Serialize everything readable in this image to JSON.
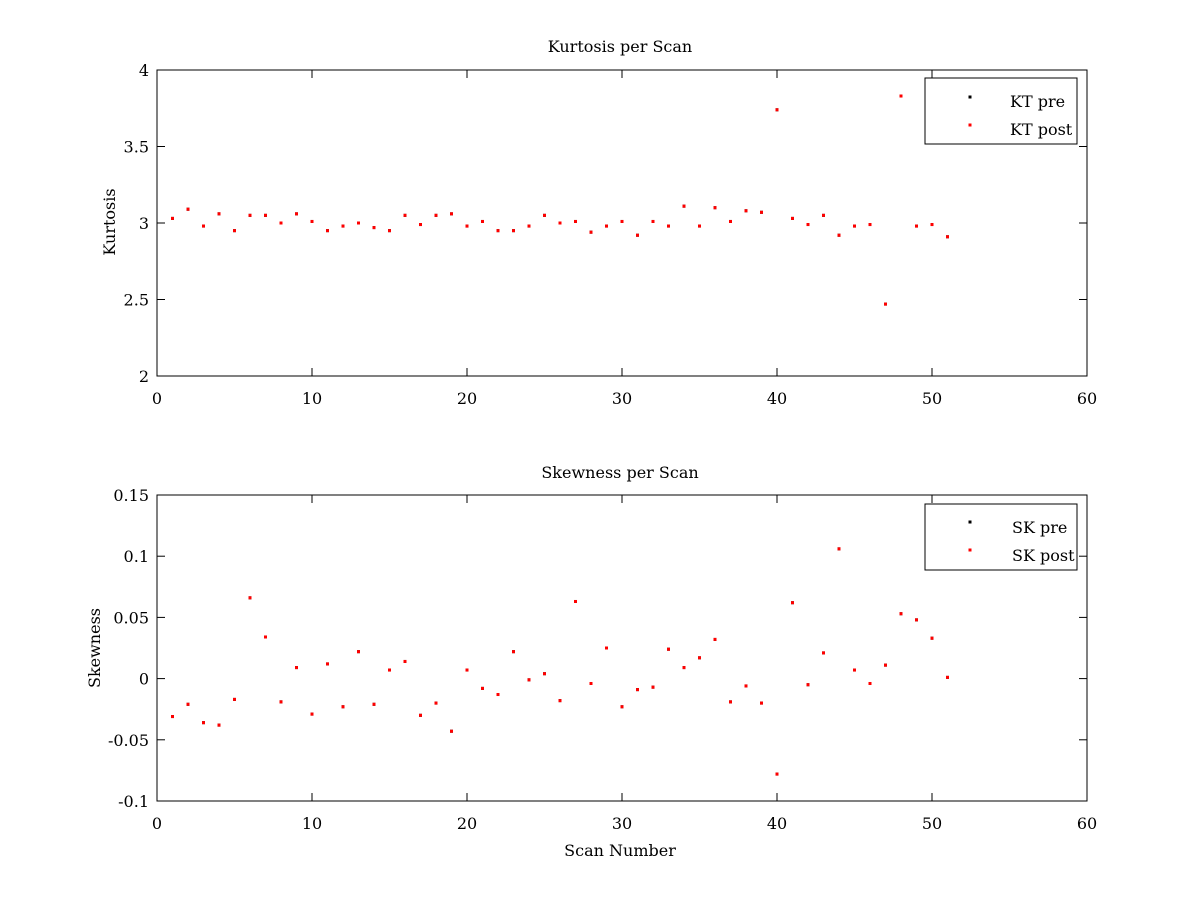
{
  "chart_data": [
    {
      "type": "scatter",
      "title": "Kurtosis per Scan",
      "xlabel": "",
      "ylabel": "Kurtosis",
      "xlim": [
        0,
        60
      ],
      "ylim": [
        2,
        4
      ],
      "xticks": [
        "0",
        "10",
        "20",
        "30",
        "40",
        "50",
        "60"
      ],
      "yticks": [
        "2",
        "2.5",
        "3",
        "3.5",
        "4"
      ],
      "grid": false,
      "legend_position": "top-right",
      "series": [
        {
          "name": "KT pre",
          "color": "#000000",
          "x": [
            1,
            2,
            3,
            4,
            5,
            6,
            7,
            8,
            9,
            10,
            11,
            12,
            13,
            14,
            15,
            16,
            17,
            18,
            19,
            20,
            21,
            22,
            23,
            24,
            25,
            26,
            27,
            28,
            29,
            30,
            31,
            32,
            33,
            34,
            35,
            36,
            37,
            38,
            39,
            40,
            41,
            42,
            43,
            44,
            45,
            46,
            47,
            48,
            49,
            50,
            51
          ],
          "y": [
            3.03,
            3.09,
            2.98,
            3.06,
            2.95,
            3.05,
            3.05,
            3.0,
            3.06,
            3.01,
            2.95,
            2.98,
            3.0,
            2.97,
            2.95,
            3.05,
            2.99,
            3.05,
            3.06,
            2.98,
            3.01,
            2.95,
            2.95,
            2.98,
            3.05,
            3.0,
            3.01,
            2.94,
            2.98,
            3.01,
            2.92,
            3.01,
            2.98,
            3.11,
            2.98,
            3.1,
            3.01,
            3.08,
            3.07,
            3.74,
            3.03,
            2.99,
            3.05,
            2.92,
            2.98,
            2.99,
            2.47,
            3.83,
            2.98,
            2.99,
            2.91
          ]
        },
        {
          "name": "KT post",
          "color": "#ff0000",
          "x": [
            1,
            2,
            3,
            4,
            5,
            6,
            7,
            8,
            9,
            10,
            11,
            12,
            13,
            14,
            15,
            16,
            17,
            18,
            19,
            20,
            21,
            22,
            23,
            24,
            25,
            26,
            27,
            28,
            29,
            30,
            31,
            32,
            33,
            34,
            35,
            36,
            37,
            38,
            39,
            40,
            41,
            42,
            43,
            44,
            45,
            46,
            47,
            48,
            49,
            50,
            51
          ],
          "y": [
            3.03,
            3.09,
            2.98,
            3.06,
            2.95,
            3.05,
            3.05,
            3.0,
            3.06,
            3.01,
            2.95,
            2.98,
            3.0,
            2.97,
            2.95,
            3.05,
            2.99,
            3.05,
            3.06,
            2.98,
            3.01,
            2.95,
            2.95,
            2.98,
            3.05,
            3.0,
            3.01,
            2.94,
            2.98,
            3.01,
            2.92,
            3.01,
            2.98,
            3.11,
            2.98,
            3.1,
            3.01,
            3.08,
            3.07,
            3.74,
            3.03,
            2.99,
            3.05,
            2.92,
            2.98,
            2.99,
            2.47,
            3.83,
            2.98,
            2.99,
            2.91
          ]
        }
      ]
    },
    {
      "type": "scatter",
      "title": "Skewness per Scan",
      "xlabel": "Scan Number",
      "ylabel": "Skewness",
      "xlim": [
        0,
        60
      ],
      "ylim": [
        -0.1,
        0.15
      ],
      "xticks": [
        "0",
        "10",
        "20",
        "30",
        "40",
        "50",
        "60"
      ],
      "yticks": [
        "-0.1",
        "-0.05",
        "0",
        "0.05",
        "0.1",
        "0.15"
      ],
      "grid": false,
      "legend_position": "top-right",
      "series": [
        {
          "name": "SK pre",
          "color": "#000000",
          "x": [
            1,
            2,
            3,
            4,
            5,
            6,
            7,
            8,
            9,
            10,
            11,
            12,
            13,
            14,
            15,
            16,
            17,
            18,
            19,
            20,
            21,
            22,
            23,
            24,
            25,
            26,
            27,
            28,
            29,
            30,
            31,
            32,
            33,
            34,
            35,
            36,
            37,
            38,
            39,
            40,
            41,
            42,
            43,
            44,
            45,
            46,
            47,
            48,
            49,
            50,
            51
          ],
          "y": [
            -0.031,
            -0.021,
            -0.036,
            -0.038,
            -0.017,
            0.066,
            0.034,
            -0.019,
            0.009,
            -0.029,
            0.012,
            -0.023,
            0.022,
            -0.021,
            0.007,
            0.014,
            -0.03,
            -0.02,
            -0.043,
            0.007,
            -0.008,
            -0.013,
            0.022,
            -0.001,
            0.004,
            -0.018,
            0.063,
            -0.004,
            0.025,
            -0.023,
            -0.009,
            -0.007,
            0.024,
            0.009,
            0.017,
            0.032,
            -0.019,
            -0.006,
            -0.02,
            -0.078,
            0.062,
            -0.005,
            0.021,
            0.106,
            0.007,
            -0.004,
            0.011,
            0.053,
            0.048,
            0.033,
            0.001
          ]
        },
        {
          "name": "SK post",
          "color": "#ff0000",
          "x": [
            1,
            2,
            3,
            4,
            5,
            6,
            7,
            8,
            9,
            10,
            11,
            12,
            13,
            14,
            15,
            16,
            17,
            18,
            19,
            20,
            21,
            22,
            23,
            24,
            25,
            26,
            27,
            28,
            29,
            30,
            31,
            32,
            33,
            34,
            35,
            36,
            37,
            38,
            39,
            40,
            41,
            42,
            43,
            44,
            45,
            46,
            47,
            48,
            49,
            50,
            51
          ],
          "y": [
            -0.031,
            -0.021,
            -0.036,
            -0.038,
            -0.017,
            0.066,
            0.034,
            -0.019,
            0.009,
            -0.029,
            0.012,
            -0.023,
            0.022,
            -0.021,
            0.007,
            0.014,
            -0.03,
            -0.02,
            -0.043,
            0.007,
            -0.008,
            -0.013,
            0.022,
            -0.001,
            0.004,
            -0.018,
            0.063,
            -0.004,
            0.025,
            -0.023,
            -0.009,
            -0.007,
            0.024,
            0.009,
            0.017,
            0.032,
            -0.019,
            -0.006,
            -0.02,
            -0.078,
            0.062,
            -0.005,
            0.021,
            0.106,
            0.007,
            -0.004,
            0.011,
            0.053,
            0.048,
            0.033,
            0.001
          ]
        }
      ]
    }
  ]
}
